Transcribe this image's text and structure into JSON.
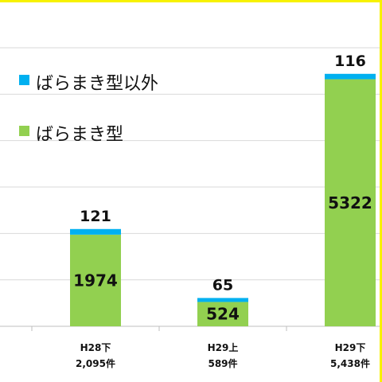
{
  "chart_data": {
    "type": "bar",
    "stacked": true,
    "categories": [
      "H28下",
      "H29上",
      "H29下"
    ],
    "category_totals": [
      "2,095件",
      "589件",
      "5,438件"
    ],
    "series": [
      {
        "name": "ばらまき型",
        "values": [
          1974,
          524,
          5322
        ],
        "color": "#92d050"
      },
      {
        "name": "ばらまき型以外",
        "values": [
          121,
          65,
          116
        ],
        "color": "#00b0f0"
      }
    ],
    "ylim": [
      0,
      6000
    ],
    "grid": true,
    "legend_position": "top-left"
  },
  "legend": {
    "items": [
      {
        "label": "ばらまき型以外",
        "color": "#00b0f0"
      },
      {
        "label": "ばらまき型",
        "color": "#92d050"
      }
    ]
  }
}
